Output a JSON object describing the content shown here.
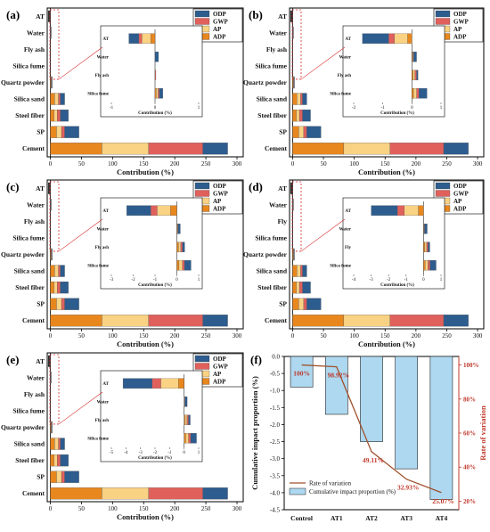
{
  "colors": {
    "ODP": "#2d5c8e",
    "GWP": "#e0605c",
    "AP": "#f9d283",
    "ADP": "#e8871e",
    "fbar": "#add8f0",
    "line": "#a0522d",
    "red": "#c0392b"
  },
  "legend_keys": [
    "ODP",
    "GWP",
    "AP",
    "ADP"
  ],
  "chart_data": [
    {
      "panel": "(a)",
      "type": "bar",
      "orientation": "horizontal",
      "stacked": true,
      "categories": [
        "AT",
        "Water",
        "Fly ash",
        "Silica fume",
        "Quartz powder",
        "Silica sand",
        "Steel fiber",
        "SP",
        "Cement"
      ],
      "series": [
        {
          "name": "ADP",
          "values": [
            0,
            0.3,
            0,
            0,
            1.2,
            7,
            6,
            10,
            83
          ]
        },
        {
          "name": "AP",
          "values": [
            0,
            0.3,
            0,
            0,
            0.8,
            6,
            5,
            8,
            75
          ]
        },
        {
          "name": "GWP",
          "values": [
            0,
            0.5,
            0,
            0,
            0.5,
            3,
            5,
            5,
            87
          ]
        },
        {
          "name": "ODP",
          "values": [
            0,
            0.4,
            0,
            0,
            0.5,
            7,
            13,
            23,
            40
          ]
        }
      ],
      "xlabel": "Contribution (%)",
      "xticks": [
        0,
        50,
        100,
        150,
        200,
        250,
        300
      ],
      "xlim": [
        -5,
        310
      ],
      "inset": {
        "categories": [
          "AT",
          "Water",
          "Fly ash",
          "Silica fume"
        ],
        "series": [
          {
            "name": "ADP",
            "values": [
              -0.1,
              0,
              0,
              0.03
            ]
          },
          {
            "name": "AP",
            "values": [
              -0.2,
              0,
              0,
              0.04
            ]
          },
          {
            "name": "GWP",
            "values": [
              -0.07,
              0,
              0.02,
              0.03
            ]
          },
          {
            "name": "ODP",
            "values": [
              -0.23,
              0.08,
              0,
              0.08
            ]
          }
        ],
        "xticks": [
          -1,
          0,
          1
        ],
        "xlim": [
          -1,
          1
        ],
        "xlabel": "Contribution (%)"
      }
    },
    {
      "panel": "(b)",
      "type": "bar",
      "orientation": "horizontal",
      "stacked": true,
      "categories": [
        "AT",
        "Water",
        "Fly ash",
        "Silica fume",
        "Quartz powder",
        "Silica sand",
        "Steel fiber",
        "SP",
        "Cement"
      ],
      "series": [
        {
          "name": "ADP",
          "values": [
            0,
            0.3,
            0,
            0,
            1.2,
            7,
            6,
            10,
            83
          ]
        },
        {
          "name": "AP",
          "values": [
            0,
            0.3,
            0,
            0,
            0.8,
            6,
            5,
            8,
            75
          ]
        },
        {
          "name": "GWP",
          "values": [
            0,
            0.5,
            0,
            0,
            0.5,
            3,
            5,
            5,
            87
          ]
        },
        {
          "name": "ODP",
          "values": [
            0,
            0.4,
            0,
            0,
            0.5,
            7,
            13,
            23,
            40
          ]
        }
      ],
      "xlabel": "Contribution (%)",
      "xticks": [
        0,
        50,
        100,
        150,
        200,
        250,
        300
      ],
      "xlim": [
        -5,
        310
      ],
      "inset": {
        "categories": [
          "AT",
          "Water",
          "Fly ash",
          "Silica fume"
        ],
        "series": [
          {
            "name": "ADP",
            "values": [
              -0.15,
              0.02,
              0.04,
              0.06
            ]
          },
          {
            "name": "AP",
            "values": [
              -0.45,
              0.02,
              0.06,
              0.1
            ]
          },
          {
            "name": "GWP",
            "values": [
              -0.2,
              0.02,
              0.06,
              0.08
            ]
          },
          {
            "name": "ODP",
            "values": [
              -0.9,
              0.1,
              0.05,
              0.28
            ]
          }
        ],
        "xticks": [
          -2,
          -1,
          0,
          1
        ],
        "xlim": [
          -2,
          1
        ],
        "xlabel": "Contribution (%)"
      }
    },
    {
      "panel": "(c)",
      "type": "bar",
      "orientation": "horizontal",
      "stacked": true,
      "categories": [
        "AT",
        "Water",
        "Fly ash",
        "Silica fume",
        "Quartz powder",
        "Silica sand",
        "Steel fiber",
        "SP",
        "Cement"
      ],
      "series": [
        {
          "name": "ADP",
          "values": [
            0,
            0.3,
            0,
            0,
            1.2,
            7,
            6,
            10,
            83
          ]
        },
        {
          "name": "AP",
          "values": [
            0,
            0.3,
            0,
            0,
            0.8,
            6,
            5,
            8,
            75
          ]
        },
        {
          "name": "GWP",
          "values": [
            0,
            0.5,
            0,
            0,
            0.5,
            3,
            5,
            5,
            87
          ]
        },
        {
          "name": "ODP",
          "values": [
            0,
            0.4,
            0,
            0,
            0.5,
            7,
            13,
            23,
            40
          ]
        }
      ],
      "xlabel": "Contribution (%)",
      "xticks": [
        0,
        50,
        100,
        150,
        200,
        250,
        300
      ],
      "xlim": [
        -5,
        310
      ],
      "inset": {
        "categories": [
          "AT",
          "Water",
          "Fly ash",
          "Silica fume"
        ],
        "series": [
          {
            "name": "ADP",
            "values": [
              -0.3,
              0.02,
              0.08,
              0.1
            ]
          },
          {
            "name": "AP",
            "values": [
              -0.6,
              0.02,
              0.1,
              0.15
            ]
          },
          {
            "name": "GWP",
            "values": [
              -0.3,
              0.02,
              0.08,
              0.1
            ]
          },
          {
            "name": "ODP",
            "values": [
              -1.1,
              0.1,
              0.1,
              0.3
            ]
          }
        ],
        "xticks": [
          -3,
          -2,
          -1,
          0,
          1
        ],
        "xlim": [
          -3,
          1
        ],
        "xlabel": "Contribution (%)"
      }
    },
    {
      "panel": "(d)",
      "type": "bar",
      "orientation": "horizontal",
      "stacked": true,
      "categories": [
        "AT",
        "Water",
        "Fly",
        "Silica fume",
        "Quartz powder",
        "Silica sand",
        "Steel fiber",
        "SP",
        "Cement"
      ],
      "series": [
        {
          "name": "ADP",
          "values": [
            0,
            0.3,
            0,
            0,
            1.2,
            7,
            6,
            10,
            83
          ]
        },
        {
          "name": "AP",
          "values": [
            0,
            0.3,
            0,
            0,
            0.8,
            6,
            5,
            8,
            75
          ]
        },
        {
          "name": "GWP",
          "values": [
            0,
            0.5,
            0,
            0,
            0.5,
            3,
            5,
            5,
            87
          ]
        },
        {
          "name": "ODP",
          "values": [
            0,
            0.4,
            0,
            0,
            0.5,
            7,
            13,
            23,
            40
          ]
        }
      ],
      "xlabel": "Contribution (%)",
      "xticks": [
        0,
        50,
        100,
        150,
        200,
        250,
        300
      ],
      "xlim": [
        -5,
        310
      ],
      "inset": {
        "categories": [
          "AT",
          "Water",
          "Fly",
          "Silica fume"
        ],
        "series": [
          {
            "name": "ADP",
            "values": [
              -0.3,
              0.02,
              0.08,
              0.1
            ]
          },
          {
            "name": "AP",
            "values": [
              -0.8,
              0.02,
              0.1,
              0.15
            ]
          },
          {
            "name": "GWP",
            "values": [
              -0.4,
              0.02,
              0.08,
              0.12
            ]
          },
          {
            "name": "ODP",
            "values": [
              -1.5,
              0.15,
              0.1,
              0.35
            ]
          }
        ],
        "xticks": [
          -4,
          -3,
          -2,
          -1,
          0,
          1
        ],
        "xlim": [
          -4,
          1
        ],
        "xlabel": "Contribution (%)"
      }
    },
    {
      "panel": "(e)",
      "type": "bar",
      "orientation": "horizontal",
      "stacked": true,
      "categories": [
        "AT",
        "Water",
        "Fly ash",
        "Silica fume",
        "Quartz powder",
        "Silica sand",
        "Steel fiber",
        "SP",
        "Cement"
      ],
      "series": [
        {
          "name": "ADP",
          "values": [
            0,
            0.3,
            0,
            0,
            1.2,
            7,
            6,
            10,
            83
          ]
        },
        {
          "name": "AP",
          "values": [
            0,
            0.3,
            0,
            0,
            0.8,
            6,
            5,
            8,
            75
          ]
        },
        {
          "name": "GWP",
          "values": [
            0,
            0.5,
            0,
            0,
            0.5,
            3,
            5,
            5,
            87
          ]
        },
        {
          "name": "ODP",
          "values": [
            0,
            0.4,
            0,
            0,
            0.5,
            7,
            13,
            23,
            40
          ]
        }
      ],
      "xlabel": "Contribution (%)",
      "xticks": [
        0,
        50,
        100,
        150,
        200,
        250,
        300
      ],
      "xlim": [
        -5,
        310
      ],
      "inset": {
        "categories": [
          "AT",
          "Water",
          "Fly ash",
          "Silica fume"
        ],
        "series": [
          {
            "name": "ADP",
            "values": [
              -0.4,
              0.02,
              0.08,
              0.12
            ]
          },
          {
            "name": "AP",
            "values": [
              -1.2,
              0.02,
              0.12,
              0.18
            ]
          },
          {
            "name": "GWP",
            "values": [
              -0.6,
              0.02,
              0.1,
              0.15
            ]
          },
          {
            "name": "ODP",
            "values": [
              -2.0,
              0.15,
              0.12,
              0.4
            ]
          }
        ],
        "xticks": [
          -5,
          -4,
          -3,
          -2,
          -1,
          0,
          1
        ],
        "xlim": [
          -5,
          1
        ],
        "xlabel": "Contribution (%)"
      }
    },
    {
      "panel": "(f)",
      "type": "bar",
      "categories": [
        "Control",
        "AT1",
        "AT2",
        "AT3",
        "AT4"
      ],
      "series": [
        {
          "name": "Cumulative impact proportion (%)",
          "values": [
            -0.9,
            -1.7,
            -2.5,
            -3.3,
            -4.2
          ]
        },
        {
          "name": "Rate of variation",
          "values": [
            100,
            98.92,
            49.11,
            32.93,
            25.07
          ]
        }
      ],
      "data_labels": [
        "100%",
        "98.92%",
        "49.11%",
        "32.93%",
        "25.07%"
      ],
      "ylabel": "Cumulative impact proportion (%)",
      "y2label": "Rate of variation",
      "ylim": [
        -4.5,
        0
      ],
      "yticks": [
        0.0,
        -0.5,
        -1.0,
        -1.5,
        -2.0,
        -2.5,
        -3.0,
        -3.5,
        -4.0,
        -4.5
      ],
      "yticklabels": [
        "0.0",
        "-0.5",
        "-1.0",
        "-1.5",
        "-2.0",
        "-2.5",
        "-3.0",
        "-3.5",
        "-4.0",
        "-4.5"
      ],
      "y2lim": [
        15,
        105
      ],
      "y2ticks": [
        100,
        80,
        60,
        40,
        20
      ],
      "y2ticklabels": [
        "100%",
        "80%",
        "60%",
        "40%",
        "20%"
      ],
      "legend": [
        "Rate of variation",
        "Cumulative impact proportion (%)"
      ]
    }
  ]
}
